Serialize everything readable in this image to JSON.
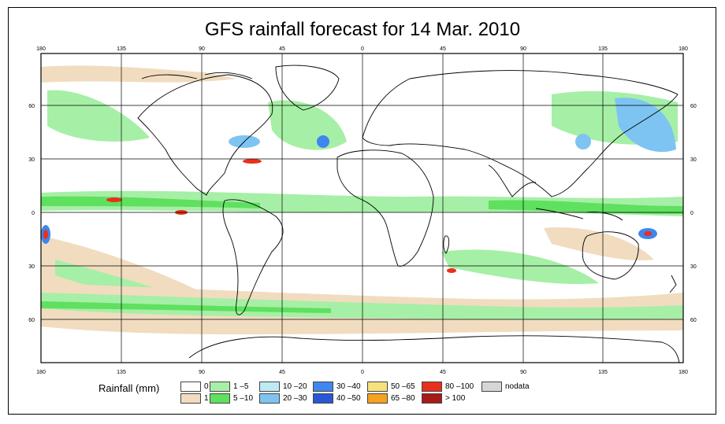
{
  "title": "GFS rainfall forecast for 14 Mar. 2010",
  "lon_ticks": [
    "180",
    "135",
    "90",
    "45",
    "0",
    "45",
    "90",
    "135",
    "180"
  ],
  "lat_ticks": [
    "60",
    "30",
    "0",
    "30",
    "60"
  ],
  "legend": {
    "title": "Rainfall (mm)",
    "items": [
      {
        "label": "0",
        "color": "#ffffff"
      },
      {
        "label": "1",
        "color": "#f1dcc0"
      },
      {
        "label": "1 –5",
        "color": "#a6efa6"
      },
      {
        "label": "5 –10",
        "color": "#5fe05f"
      },
      {
        "label": "10 –20",
        "color": "#bdeaf5"
      },
      {
        "label": "20 –30",
        "color": "#7ec4f2"
      },
      {
        "label": "30 –40",
        "color": "#3f86ee"
      },
      {
        "label": "40 –50",
        "color": "#2a56d6"
      },
      {
        "label": "50 –65",
        "color": "#f6e27a"
      },
      {
        "label": "65 –80",
        "color": "#f5a21e"
      },
      {
        "label": "80 –100",
        "color": "#e8301c"
      },
      {
        "label": "> 100",
        "color": "#a8191a"
      },
      {
        "label": "nodata",
        "color": "#d6d6d6"
      }
    ]
  }
}
